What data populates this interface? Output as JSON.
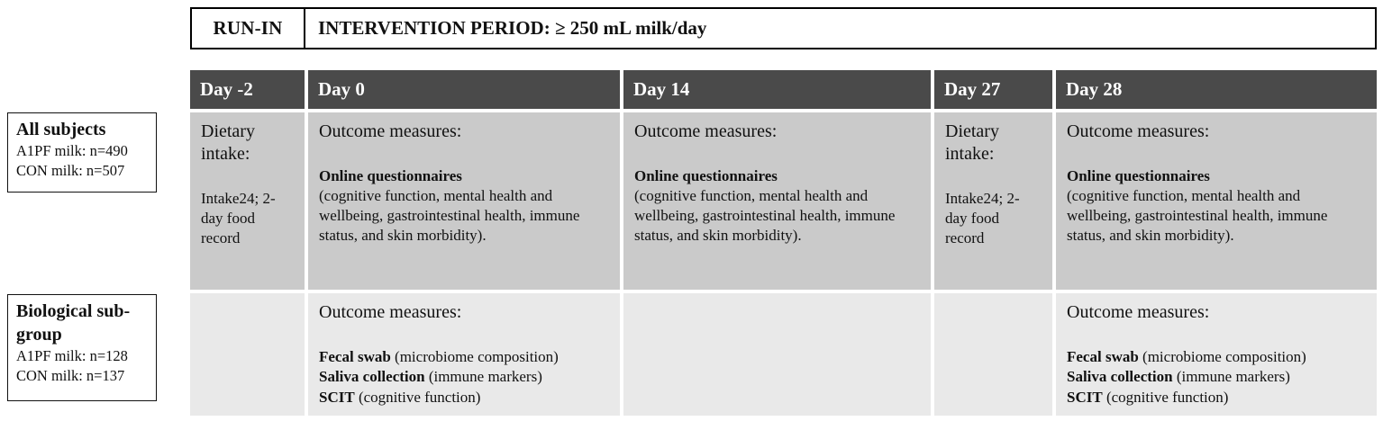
{
  "header": {
    "run_in": "RUN-IN",
    "intervention": "INTERVENTION PERIOD: ≥ 250 mL milk/day"
  },
  "days": [
    "Day -2",
    "Day 0",
    "Day 14",
    "Day 27",
    "Day 28"
  ],
  "groups": {
    "all_subjects": {
      "title": "All subjects",
      "line1": "A1PF milk: n=490",
      "line2": "CON milk: n=507"
    },
    "biological": {
      "title": "Biological sub-group",
      "line1": "A1PF milk: n=128",
      "line2": "CON milk: n=137"
    }
  },
  "cells": {
    "dietary": {
      "title": "Dietary intake:",
      "body": "Intake24; 2-day food record"
    },
    "questionnaire": {
      "title": "Outcome measures:",
      "bold": "Online questionnaires",
      "body": "(cognitive function, mental health and wellbeing, gastrointestinal health, immune status, and skin morbidity)."
    },
    "biological": {
      "title": "Outcome measures:",
      "items": [
        {
          "bold": "Fecal swab",
          "rest": " (microbiome composition)"
        },
        {
          "bold": "Saliva collection",
          "rest": " (immune markers)"
        },
        {
          "bold": "SCIT",
          "rest": " (cognitive function)"
        }
      ]
    }
  },
  "colors": {
    "day_header_bg": "#4a4a4a",
    "row_main_bg": "#cacaca",
    "row_bio_bg": "#e9e9e9"
  }
}
